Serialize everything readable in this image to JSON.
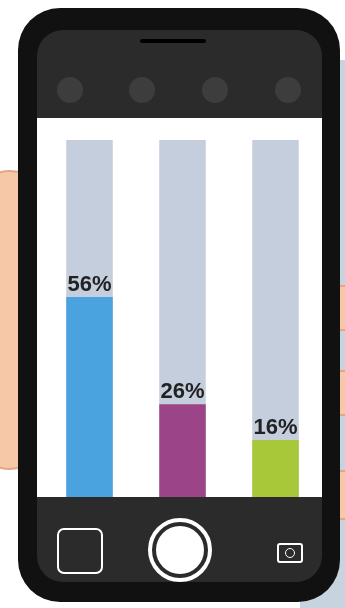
{
  "chart_data": {
    "type": "bar",
    "categories": [
      null,
      null,
      null
    ],
    "values": [
      56,
      26,
      16
    ],
    "value_labels": [
      "56%",
      "26%",
      "16%"
    ],
    "colors": [
      "#4aa3df",
      "#9b4488",
      "#a8c83a"
    ],
    "ylim": [
      0,
      100
    ],
    "data_labels": true,
    "tick_labels": false,
    "grid": false
  }
}
